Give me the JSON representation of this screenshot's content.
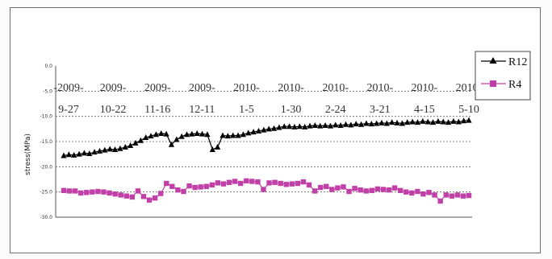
{
  "chart_data": {
    "type": "line",
    "ylabel": "stress(MPa)",
    "ylim": [
      -30.0,
      0.0
    ],
    "y_ticks": [
      "0.0",
      "-5.0",
      "-10.0",
      "-15.0",
      "-20.0",
      "-25.0",
      "-30.0"
    ],
    "x_tick_labels": [
      {
        "year": "-2009-",
        "date": "9-27"
      },
      {
        "year": "2009-",
        "date": "10-22"
      },
      {
        "year": "2009-",
        "date": "11-16"
      },
      {
        "year": "2009-",
        "date": "12-11"
      },
      {
        "year": "2010-",
        "date": "1-5"
      },
      {
        "year": "2010-",
        "date": "1-30"
      },
      {
        "year": "2010-",
        "date": "2-24"
      },
      {
        "year": "2010-",
        "date": "3-21"
      },
      {
        "year": "2010-",
        "date": "4-15"
      },
      {
        "year": "2010-",
        "date": "5-10"
      }
    ],
    "grid": "horizontal-dashed",
    "legend_position": "top-right",
    "series": [
      {
        "name": "R12",
        "color": "#000000",
        "marker": "triangle",
        "values": [
          -17.8,
          -17.6,
          -17.7,
          -17.5,
          -17.3,
          -17.4,
          -17.1,
          -16.9,
          -16.7,
          -16.5,
          -16.6,
          -16.4,
          -16.1,
          -15.8,
          -15.3,
          -14.8,
          -14.2,
          -13.9,
          -13.6,
          -13.4,
          -13.5,
          -15.6,
          -14.6,
          -14.0,
          -13.6,
          -13.5,
          -13.4,
          -13.5,
          -13.6,
          -16.6,
          -16.1,
          -13.8,
          -13.9,
          -13.8,
          -13.8,
          -13.6,
          -13.3,
          -13.1,
          -12.9,
          -12.7,
          -12.5,
          -12.4,
          -12.2,
          -12.0,
          -12.0,
          -12.1,
          -12.0,
          -12.1,
          -11.9,
          -11.8,
          -11.9,
          -11.8,
          -11.9,
          -11.7,
          -11.8,
          -11.6,
          -11.7,
          -11.5,
          -11.6,
          -11.4,
          -11.5,
          -11.4,
          -11.3,
          -11.4,
          -11.2,
          -11.3,
          -11.4,
          -11.2,
          -11.1,
          -11.2,
          -11.0,
          -11.1,
          -11.2,
          -11.0,
          -11.1,
          -11.2,
          -11.0,
          -11.1,
          -10.9,
          -10.8
        ]
      },
      {
        "name": "R4",
        "color": "#c040a8",
        "marker": "square",
        "values": [
          -24.7,
          -24.8,
          -24.8,
          -25.2,
          -25.1,
          -25.0,
          -24.9,
          -25.0,
          -25.2,
          -25.4,
          -25.6,
          -25.8,
          -26.0,
          -24.8,
          -25.9,
          -26.6,
          -26.2,
          -25.3,
          -23.3,
          -23.9,
          -24.6,
          -24.9,
          -23.8,
          -24.1,
          -24.0,
          -23.9,
          -23.6,
          -23.2,
          -23.4,
          -23.1,
          -22.9,
          -23.3,
          -22.8,
          -22.9,
          -23.0,
          -24.5,
          -23.2,
          -23.1,
          -23.3,
          -23.5,
          -23.4,
          -23.3,
          -23.0,
          -23.6,
          -24.8,
          -24.1,
          -23.9,
          -24.5,
          -24.2,
          -24.0,
          -24.9,
          -24.3,
          -24.6,
          -24.8,
          -24.7,
          -24.4,
          -24.5,
          -24.6,
          -24.2,
          -24.7,
          -25.0,
          -25.2,
          -24.9,
          -25.4,
          -25.1,
          -25.6,
          -26.8,
          -25.6,
          -25.8,
          -25.6,
          -25.8,
          -25.7
        ]
      }
    ]
  }
}
